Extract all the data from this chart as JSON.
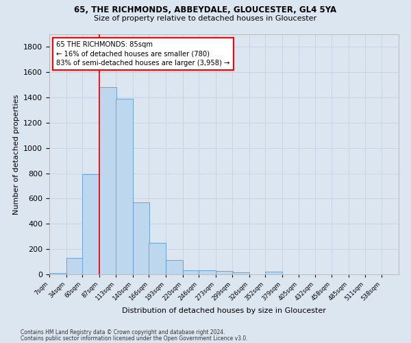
{
  "title1": "65, THE RICHMONDS, ABBEYDALE, GLOUCESTER, GL4 5YA",
  "title2": "Size of property relative to detached houses in Gloucester",
  "xlabel": "Distribution of detached houses by size in Gloucester",
  "ylabel": "Number of detached properties",
  "bin_labels": [
    "7sqm",
    "34sqm",
    "60sqm",
    "87sqm",
    "113sqm",
    "140sqm",
    "166sqm",
    "193sqm",
    "220sqm",
    "246sqm",
    "273sqm",
    "299sqm",
    "326sqm",
    "352sqm",
    "379sqm",
    "405sqm",
    "432sqm",
    "458sqm",
    "485sqm",
    "511sqm",
    "538sqm"
  ],
  "bin_edges": [
    7,
    34,
    60,
    87,
    113,
    140,
    166,
    193,
    220,
    246,
    273,
    299,
    326,
    352,
    379,
    405,
    432,
    458,
    485,
    511,
    538
  ],
  "bar_heights": [
    10,
    130,
    795,
    1480,
    1390,
    570,
    250,
    115,
    35,
    30,
    28,
    15,
    0,
    20,
    0,
    0,
    0,
    0,
    0,
    0,
    0
  ],
  "bar_color": "#bdd7ee",
  "bar_edge_color": "#5b9bd5",
  "red_line_x": 87,
  "annotation_line1": "65 THE RICHMONDS: 85sqm",
  "annotation_line2": "← 16% of detached houses are smaller (780)",
  "annotation_line3": "83% of semi-detached houses are larger (3,958) →",
  "annotation_box_color": "white",
  "annotation_box_edge_color": "red",
  "ylim": [
    0,
    1900
  ],
  "yticks": [
    0,
    200,
    400,
    600,
    800,
    1000,
    1200,
    1400,
    1600,
    1800
  ],
  "grid_color": "#c8d4e3",
  "background_color": "#dce6f1",
  "footnote1": "Contains HM Land Registry data © Crown copyright and database right 2024.",
  "footnote2": "Contains public sector information licensed under the Open Government Licence v3.0."
}
